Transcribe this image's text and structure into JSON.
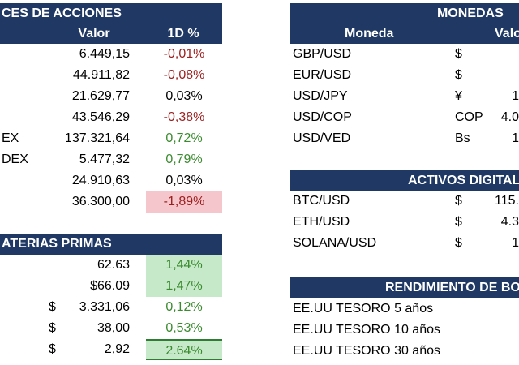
{
  "indices": {
    "title": "CES DE ACCIONES",
    "col_value": "Valor",
    "col_change": "1D %",
    "rows": [
      {
        "name": "",
        "value": "6.449,15",
        "change": "-0,01%",
        "tone": "neg",
        "hl": ""
      },
      {
        "name": "",
        "value": "44.911,82",
        "change": "-0,08%",
        "tone": "neg",
        "hl": ""
      },
      {
        "name": "",
        "value": "21.629,77",
        "change": "0,03%",
        "tone": "neu",
        "hl": ""
      },
      {
        "name": "",
        "value": "43.546,29",
        "change": "-0,38%",
        "tone": "neg",
        "hl": ""
      },
      {
        "name": "EX",
        "value": "137.321,64",
        "change": "0,72%",
        "tone": "pos",
        "hl": ""
      },
      {
        "name": "DEX",
        "value": "5.477,32",
        "change": "0,79%",
        "tone": "pos",
        "hl": ""
      },
      {
        "name": "",
        "value": "24.910,63",
        "change": "0,03%",
        "tone": "neu",
        "hl": ""
      },
      {
        "name": "",
        "value": "36.300,00",
        "change": "-1,89%",
        "tone": "neg",
        "hl": "bg-neg"
      }
    ]
  },
  "commodities": {
    "title": "ATERIAS PRIMAS",
    "rows": [
      {
        "cur": "",
        "value": "62.63",
        "change": "1,44%",
        "tone": "pos",
        "hl": "bg-pos"
      },
      {
        "cur": "",
        "value": "$66.09",
        "change": "1,47%",
        "tone": "pos",
        "hl": "bg-pos"
      },
      {
        "cur": "$",
        "value": "3.331,06",
        "change": "0,12%",
        "tone": "pos",
        "hl": ""
      },
      {
        "cur": "$",
        "value": "38,00",
        "change": "0,53%",
        "tone": "pos",
        "hl": ""
      },
      {
        "cur": "$",
        "value": "2,92",
        "change": "2.64%",
        "tone": "pos",
        "hl": "bg-pos"
      }
    ]
  },
  "currencies": {
    "title": "MONEDAS",
    "col_pair": "Moneda",
    "col_value": "Valo",
    "rows": [
      {
        "pair": "GBP/USD",
        "sym": "$",
        "value": ""
      },
      {
        "pair": "EUR/USD",
        "sym": "$",
        "value": ""
      },
      {
        "pair": "USD/JPY",
        "sym": "¥",
        "value": "1"
      },
      {
        "pair": "USD/COP",
        "sym": "COP",
        "value": "4.0"
      },
      {
        "pair": "USD/VED",
        "sym": "Bs",
        "value": "1"
      }
    ]
  },
  "crypto": {
    "title": "ACTIVOS DIGITAL",
    "rows": [
      {
        "pair": "BTC/USD",
        "sym": "$",
        "value": "115."
      },
      {
        "pair": "ETH/USD",
        "sym": "$",
        "value": "4.3"
      },
      {
        "pair": "SOLANA/USD",
        "sym": "$",
        "value": "1"
      }
    ]
  },
  "bonds": {
    "title": "RENDIMIENTO DE BO",
    "rows": [
      {
        "name": "EE.UU TESORO 5 años"
      },
      {
        "name": "EE.UU TESORO 10 años"
      },
      {
        "name": "EE.UU TESORO 30 años"
      }
    ]
  }
}
